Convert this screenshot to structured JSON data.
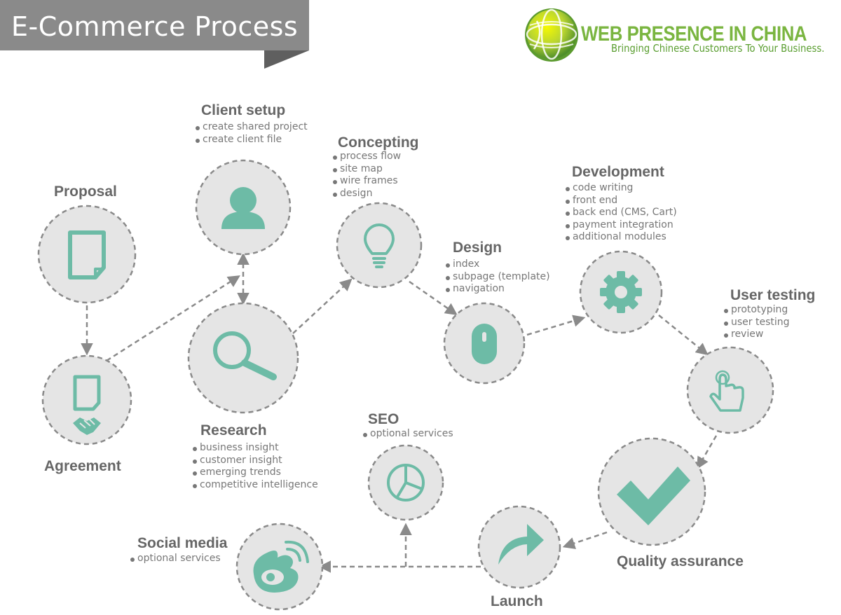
{
  "header": {
    "title": "E-Commerce Process"
  },
  "logo": {
    "name": "WEB PRESENCE IN CHINA",
    "tagline": "Bringing Chinese Customers To Your Business."
  },
  "colors": {
    "accent": "#6dbba6",
    "circle_fill": "#e5e5e5",
    "dashes": "#8a8a8a",
    "banner": "#8a8a8a",
    "logo_green": "#7ab540"
  },
  "steps": {
    "proposal": {
      "title": "Proposal",
      "icon": "document-icon",
      "items": []
    },
    "agreement": {
      "title": "Agreement",
      "icon": "handshake-document-icon",
      "items": []
    },
    "client_setup": {
      "title": "Client setup",
      "icon": "user-icon",
      "items": [
        "create shared project",
        "create client file"
      ]
    },
    "research": {
      "title": "Research",
      "icon": "magnifier-icon",
      "items": [
        "business insight",
        "customer insight",
        "emerging trends",
        "competitive intelligence"
      ]
    },
    "concepting": {
      "title": "Concepting",
      "icon": "lightbulb-icon",
      "items": [
        "process flow",
        "site map",
        "wire frames",
        "design"
      ]
    },
    "design": {
      "title": "Design",
      "icon": "mouse-icon",
      "items": [
        "index",
        "subpage (template)",
        "navigation"
      ]
    },
    "development": {
      "title": "Development",
      "icon": "gear-icon",
      "items": [
        "code writing",
        "front end",
        "back end (CMS, Cart)",
        "payment integration",
        "additional modules"
      ]
    },
    "user_testing": {
      "title": "User testing",
      "icon": "pointer-hand-icon",
      "items": [
        "prototyping",
        "user testing",
        "review"
      ]
    },
    "quality_assurance": {
      "title": "Quality assurance",
      "icon": "checkmark-icon",
      "items": []
    },
    "launch": {
      "title": "Launch",
      "icon": "share-arrow-icon",
      "items": []
    },
    "seo": {
      "title": "SEO",
      "icon": "pie-chart-icon",
      "items": [
        "optional services"
      ]
    },
    "social_media": {
      "title": "Social media",
      "icon": "weibo-icon",
      "items": [
        "optional services"
      ]
    }
  }
}
